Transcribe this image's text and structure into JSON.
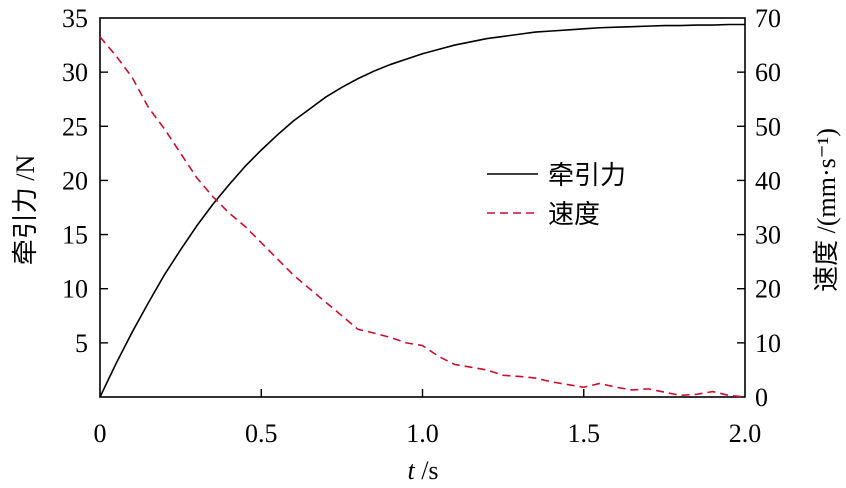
{
  "chart_data": {
    "type": "line",
    "title": "",
    "xlabel_italic": "t",
    "xlabel_unit": " /s",
    "ylabel_left": "牵引力 /N",
    "ylabel_right": "速度 /(mm·s⁻¹)",
    "x_ticks": [
      "0",
      "0.5",
      "1.0",
      "1.5",
      "2.0"
    ],
    "y_left_ticks": [
      "5",
      "10",
      "15",
      "20",
      "25",
      "30",
      "35"
    ],
    "y_right_ticks": [
      "0",
      "10",
      "20",
      "30",
      "40",
      "50",
      "60",
      "70"
    ],
    "xlim": [
      0,
      2.0
    ],
    "ylim_left": [
      0,
      35
    ],
    "ylim_right": [
      0,
      70
    ],
    "legend_position": "center-right",
    "series": [
      {
        "name": "牵引力",
        "axis": "left",
        "style": "solid",
        "color": "#000000",
        "x": [
          0,
          0.05,
          0.1,
          0.15,
          0.2,
          0.25,
          0.3,
          0.35,
          0.4,
          0.45,
          0.5,
          0.55,
          0.6,
          0.65,
          0.7,
          0.75,
          0.8,
          0.85,
          0.9,
          0.95,
          1.0,
          1.05,
          1.1,
          1.15,
          1.2,
          1.25,
          1.3,
          1.35,
          1.4,
          1.45,
          1.5,
          1.55,
          1.6,
          1.65,
          1.7,
          1.75,
          1.8,
          1.85,
          1.9,
          1.95,
          2.0
        ],
        "y": [
          0,
          3.1,
          6.0,
          8.7,
          11.3,
          13.6,
          15.8,
          17.8,
          19.6,
          21.3,
          22.8,
          24.2,
          25.5,
          26.6,
          27.7,
          28.6,
          29.4,
          30.1,
          30.7,
          31.2,
          31.7,
          32.1,
          32.5,
          32.8,
          33.1,
          33.3,
          33.5,
          33.7,
          33.8,
          33.9,
          34.0,
          34.1,
          34.15,
          34.2,
          34.25,
          34.3,
          34.3,
          34.35,
          34.35,
          34.4,
          34.4
        ]
      },
      {
        "name": "速度",
        "axis": "right",
        "style": "dashed",
        "color": "#c8102e",
        "x": [
          0,
          0.05,
          0.1,
          0.15,
          0.2,
          0.25,
          0.3,
          0.35,
          0.4,
          0.45,
          0.5,
          0.55,
          0.6,
          0.65,
          0.7,
          0.75,
          0.8,
          0.85,
          0.9,
          0.95,
          1.0,
          1.05,
          1.1,
          1.15,
          1.2,
          1.25,
          1.3,
          1.35,
          1.4,
          1.45,
          1.5,
          1.55,
          1.6,
          1.65,
          1.7,
          1.75,
          1.8,
          1.85,
          1.9,
          1.95,
          2.0
        ],
        "y": [
          66.5,
          63,
          59,
          53.5,
          49.5,
          45,
          40.5,
          37,
          34,
          31.5,
          28.5,
          25.5,
          22.5,
          20,
          17.5,
          15,
          12.5,
          11.8,
          11,
          10,
          9.5,
          7.5,
          6,
          5.5,
          5,
          4,
          3.8,
          3.5,
          2.8,
          2.3,
          1.8,
          2.5,
          1.8,
          1.3,
          1.5,
          0.9,
          0.3,
          0.5,
          1.0,
          0.3,
          0.0
        ]
      }
    ]
  }
}
